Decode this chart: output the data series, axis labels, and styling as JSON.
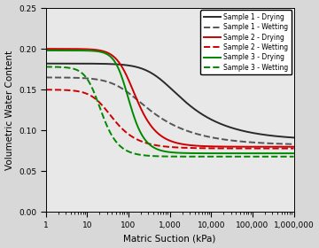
{
  "title": "",
  "xlabel": "Matric Suction (kPa)",
  "ylabel": "Volumetric Water Content",
  "xlim": [
    1,
    1000000
  ],
  "ylim": [
    0.0,
    0.25
  ],
  "yticks": [
    0.0,
    0.05,
    0.1,
    0.15,
    0.2,
    0.25
  ],
  "legend": [
    "Sample 1 - Drying",
    "Sample 1 - Wetting",
    "Sample 2 - Drying",
    "Sample 2 - Wetting",
    "Sample 3 - Drying",
    "Sample 3 - Wetting"
  ],
  "curves": {
    "s1_dry": {
      "color": "#2a2a2a",
      "linestyle": "solid",
      "theta_s": 0.182,
      "theta_r": 0.088,
      "alpha": 0.0018,
      "n": 1.45
    },
    "s1_wet": {
      "color": "#555555",
      "linestyle": "dashed",
      "theta_s": 0.165,
      "theta_r": 0.082,
      "alpha": 0.012,
      "n": 1.45
    },
    "s2_dry": {
      "color": "#cc0000",
      "linestyle": "solid",
      "theta_s": 0.2,
      "theta_r": 0.08,
      "alpha": 0.01,
      "n": 2.2
    },
    "s2_wet": {
      "color": "#cc0000",
      "linestyle": "dashed",
      "theta_s": 0.15,
      "theta_r": 0.078,
      "alpha": 0.04,
      "n": 2.0
    },
    "s3_dry": {
      "color": "#008800",
      "linestyle": "solid",
      "theta_s": 0.198,
      "theta_r": 0.072,
      "alpha": 0.012,
      "n": 2.8
    },
    "s3_wet": {
      "color": "#008800",
      "linestyle": "dashed",
      "theta_s": 0.178,
      "theta_r": 0.068,
      "alpha": 0.06,
      "n": 2.6
    }
  },
  "bg_color": "#d8d8d8",
  "plot_bg": "#e8e8e8"
}
